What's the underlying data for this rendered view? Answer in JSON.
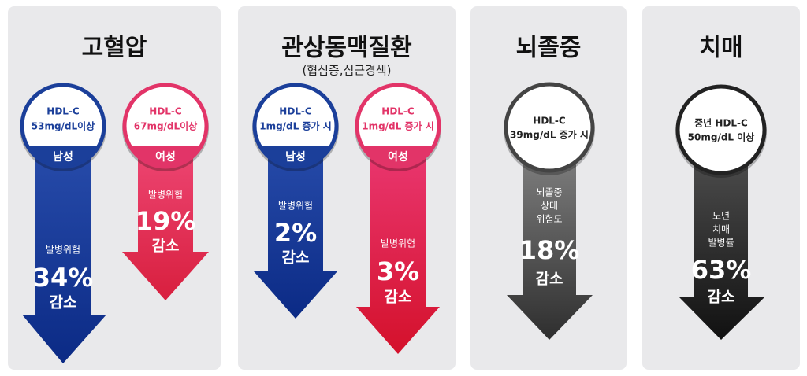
{
  "panels": [
    {
      "title": "고혈압",
      "arrows": [
        {
          "circle_lines": [
            "HDL-C",
            "53mg/dL이상"
          ],
          "band": "남성",
          "risk_lines": [
            "발병위험"
          ],
          "value": "34%",
          "change": "감소"
        },
        {
          "circle_lines": [
            "HDL-C",
            "67mg/dL이상"
          ],
          "band": "여성",
          "risk_lines": [
            "발병위험"
          ],
          "value": "19%",
          "change": "감소"
        }
      ]
    },
    {
      "title": "관상동맥질환",
      "subtitle": "(협심증,심근경색)",
      "arrows": [
        {
          "circle_lines": [
            "HDL-C",
            "1mg/dL 증가 시"
          ],
          "band": "남성",
          "risk_lines": [
            "발병위험"
          ],
          "value": "2%",
          "change": "감소"
        },
        {
          "circle_lines": [
            "HDL-C",
            "1mg/dL 증가 시"
          ],
          "band": "여성",
          "risk_lines": [
            "발병위험"
          ],
          "value": "3%",
          "change": "감소"
        }
      ]
    },
    {
      "title": "뇌졸중",
      "arrows": [
        {
          "circle_lines": [
            "HDL-C",
            "39mg/dL 증가 시"
          ],
          "risk_lines": [
            "뇌졸중",
            "상대",
            "위험도"
          ],
          "value": "18%",
          "change": "감소"
        }
      ]
    },
    {
      "title": "치매",
      "arrows": [
        {
          "circle_lines": [
            "중년 HDL-C",
            "50mg/dL 이상"
          ],
          "risk_lines": [
            "노년",
            "치매",
            "발병률"
          ],
          "value": "63%",
          "change": "감소"
        }
      ]
    }
  ]
}
